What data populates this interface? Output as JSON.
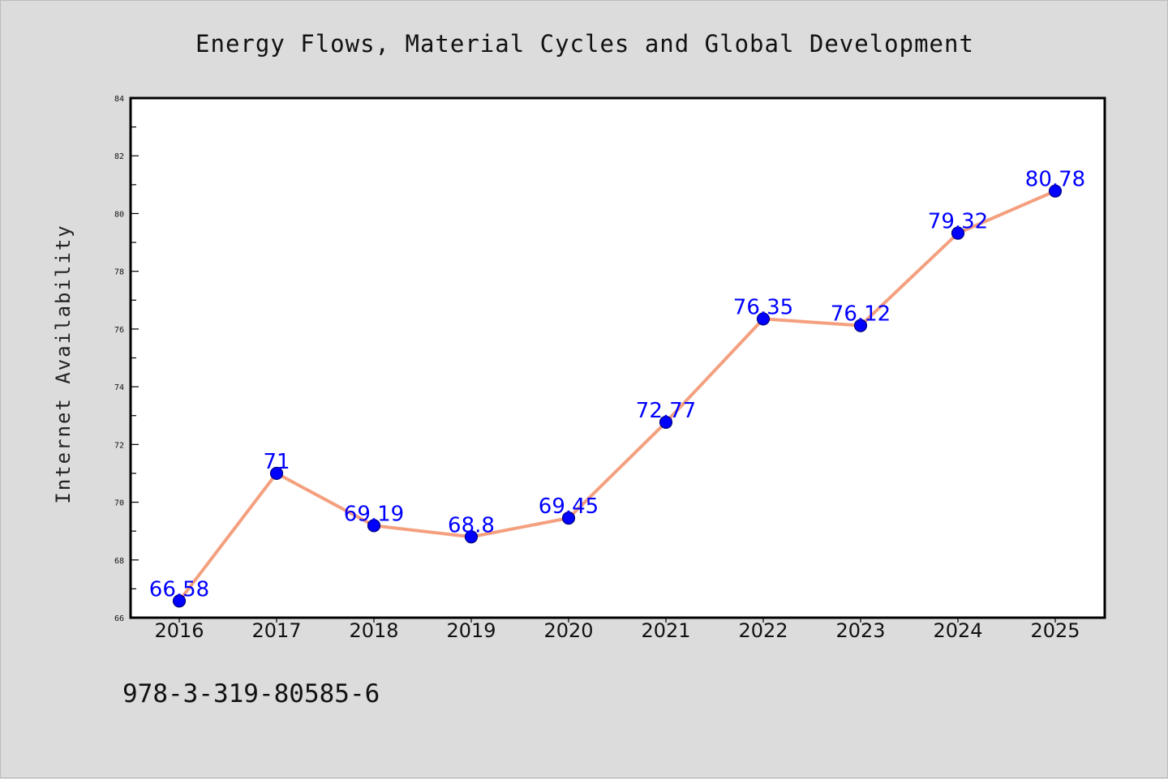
{
  "chart_data": {
    "type": "line",
    "title": "Energy Flows, Material Cycles and Global Development",
    "xlabel": "",
    "ylabel": "Internet Availability",
    "categories": [
      "2016",
      "2017",
      "2018",
      "2019",
      "2020",
      "2021",
      "2022",
      "2023",
      "2024",
      "2025"
    ],
    "values": [
      66.58,
      71,
      69.19,
      68.8,
      69.45,
      72.77,
      76.35,
      76.12,
      79.32,
      80.78
    ],
    "data_labels": [
      "66.58",
      "71",
      "69.19",
      "68.8",
      "69.45",
      "72.77",
      "76.35",
      "76.12",
      "79.32",
      "80.78"
    ],
    "ylim": [
      66,
      84
    ],
    "yticks": [
      "66",
      "68",
      "70",
      "72",
      "74",
      "76",
      "78",
      "80",
      "82",
      "84"
    ],
    "grid": false,
    "legend": "none",
    "colors": {
      "line": "#f4a07f",
      "marker": "#0000ff",
      "data_label": "#0000ff",
      "plot_background": "#ffffff",
      "figure_background": "#dcdcdc"
    }
  },
  "footer": {
    "isbn": "978-3-319-80585-6"
  }
}
